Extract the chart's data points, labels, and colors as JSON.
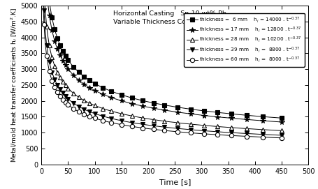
{
  "title_line1": "Horizontal Casting   Sn-10 wt% Pb",
  "title_line2": "Variable Thickness Copper Mold",
  "xlabel": "Time [s]",
  "xlim": [
    0,
    500
  ],
  "ylim": [
    0,
    5000
  ],
  "xticks": [
    0,
    50,
    100,
    150,
    200,
    250,
    300,
    350,
    400,
    450,
    500
  ],
  "yticks": [
    0,
    500,
    1000,
    1500,
    2000,
    2500,
    3000,
    3500,
    4000,
    4500,
    5000
  ],
  "series": [
    {
      "A": 14000,
      "exp": -0.37,
      "thickness": " 6 mm",
      "coeff": "14000",
      "marker": "s",
      "fillstyle": "full"
    },
    {
      "A": 12800,
      "exp": -0.37,
      "thickness": "17 mm",
      "coeff": "12800",
      "marker": "*",
      "fillstyle": "full"
    },
    {
      "A": 10200,
      "exp": -0.37,
      "thickness": "28 mm",
      "coeff": "10200",
      "marker": "^",
      "fillstyle": "none"
    },
    {
      "A": 8800,
      "exp": -0.37,
      "thickness": "39 mm",
      "coeff": " 8800",
      "marker": "v",
      "fillstyle": "full"
    },
    {
      "A": 8000,
      "exp": -0.37,
      "thickness": "60 mm",
      "coeff": " 8000",
      "marker": "o",
      "fillstyle": "none"
    }
  ],
  "t_start": 2,
  "t_end": 450,
  "n_smooth": 300,
  "marker_t_values": [
    5,
    10,
    15,
    20,
    25,
    30,
    35,
    40,
    45,
    50,
    60,
    70,
    80,
    90,
    100,
    115,
    130,
    150,
    170,
    190,
    210,
    230,
    255,
    280,
    305,
    330,
    355,
    385,
    415,
    450
  ]
}
